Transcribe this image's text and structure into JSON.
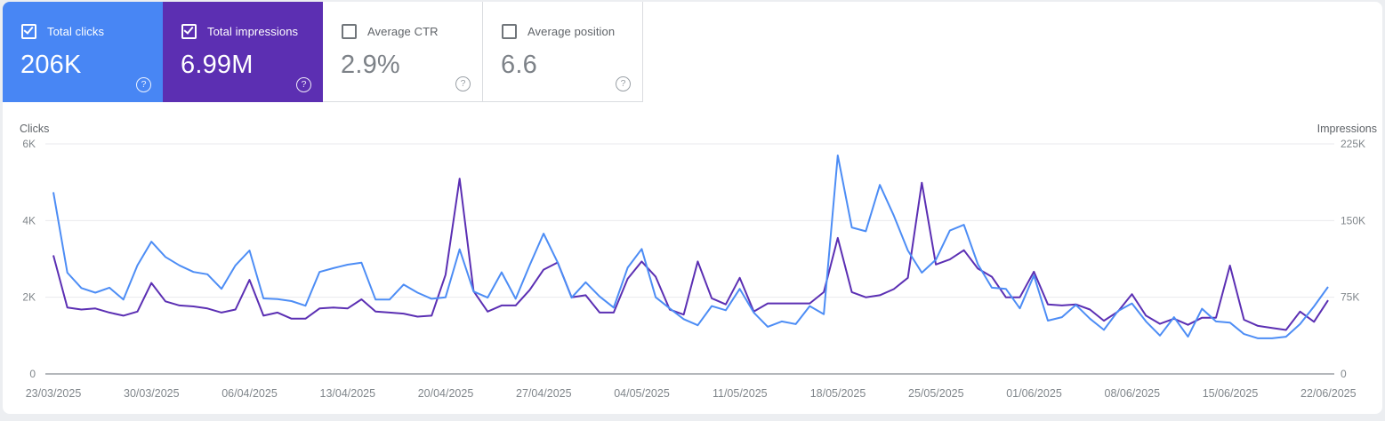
{
  "page": {
    "background": "#eceef1",
    "panel_background": "#ffffff"
  },
  "icons": {
    "help": "?"
  },
  "cards": [
    {
      "label": "Total clicks",
      "value": "206K",
      "checked": true,
      "filled": true,
      "bg": "#4886f4"
    },
    {
      "label": "Total impressions",
      "value": "6.99M",
      "checked": true,
      "filled": true,
      "bg": "#5c2fb2"
    },
    {
      "label": "Average CTR",
      "value": "2.9%",
      "checked": false,
      "filled": false,
      "bg": "#ffffff"
    },
    {
      "label": "Average position",
      "value": "6.6",
      "checked": false,
      "filled": false,
      "bg": "#ffffff"
    }
  ],
  "chart_data": {
    "type": "line",
    "x_unit": "day",
    "date_range": {
      "start": "23/03/2025",
      "end": "22/06/2025"
    },
    "x_labels": [
      "23/03/2025",
      "30/03/2025",
      "06/04/2025",
      "13/04/2025",
      "20/04/2025",
      "27/04/2025",
      "04/05/2025",
      "11/05/2025",
      "18/05/2025",
      "25/05/2025",
      "01/06/2025",
      "08/06/2025",
      "15/06/2025",
      "22/06/2025"
    ],
    "left_axis": {
      "title": "Clicks",
      "ticks": [
        "6K",
        "4K",
        "2K",
        "0"
      ],
      "max": 6000
    },
    "right_axis": {
      "title": "Impressions",
      "ticks": [
        "225K",
        "150K",
        "75K",
        "0"
      ],
      "max": 225000
    },
    "grid": "horizontal",
    "legend": "none",
    "series": [
      {
        "name": "Total clicks",
        "axis": "left",
        "color": "#4d8df5",
        "values": [
          4740,
          2640,
          2240,
          2120,
          2250,
          1940,
          2830,
          3450,
          3050,
          2830,
          2660,
          2600,
          2220,
          2830,
          3220,
          1970,
          1950,
          1900,
          1780,
          2660,
          2760,
          2850,
          2900,
          1940,
          1940,
          2330,
          2120,
          1960,
          2000,
          3250,
          2150,
          1990,
          2650,
          1960,
          2830,
          3660,
          2910,
          1990,
          2390,
          2020,
          1730,
          2770,
          3260,
          2000,
          1710,
          1430,
          1270,
          1770,
          1660,
          2220,
          1600,
          1230,
          1370,
          1300,
          1770,
          1560,
          5700,
          3820,
          3720,
          4930,
          4130,
          3220,
          2640,
          2980,
          3740,
          3890,
          2860,
          2250,
          2220,
          1710,
          2570,
          1390,
          1480,
          1800,
          1440,
          1150,
          1640,
          1840,
          1370,
          1000,
          1480,
          970,
          1700,
          1370,
          1340,
          1040,
          930,
          930,
          970,
          1300,
          1760,
          2270
        ]
      },
      {
        "name": "Total impressions",
        "axis": "right",
        "color": "#5b2fb3",
        "values": [
          116000,
          65000,
          63000,
          64000,
          60000,
          57000,
          61000,
          89000,
          71000,
          67000,
          66000,
          64000,
          60000,
          63000,
          92000,
          57000,
          60000,
          54000,
          54000,
          64000,
          65000,
          64000,
          73000,
          61000,
          60000,
          59000,
          56000,
          57000,
          97000,
          191000,
          81000,
          61000,
          67000,
          67000,
          82000,
          102000,
          109000,
          75000,
          77000,
          60000,
          60000,
          93000,
          110000,
          95000,
          63000,
          58000,
          110000,
          74000,
          68000,
          94000,
          61000,
          69000,
          69000,
          69000,
          69000,
          80000,
          133000,
          80000,
          75000,
          77000,
          83000,
          94000,
          187000,
          107000,
          112000,
          121000,
          103000,
          95000,
          75000,
          75000,
          100000,
          68000,
          67000,
          68000,
          63000,
          52000,
          61000,
          78000,
          57000,
          49000,
          54000,
          48000,
          55000,
          55000,
          106000,
          53000,
          47000,
          45000,
          43000,
          61000,
          51000,
          72000
        ]
      }
    ]
  }
}
